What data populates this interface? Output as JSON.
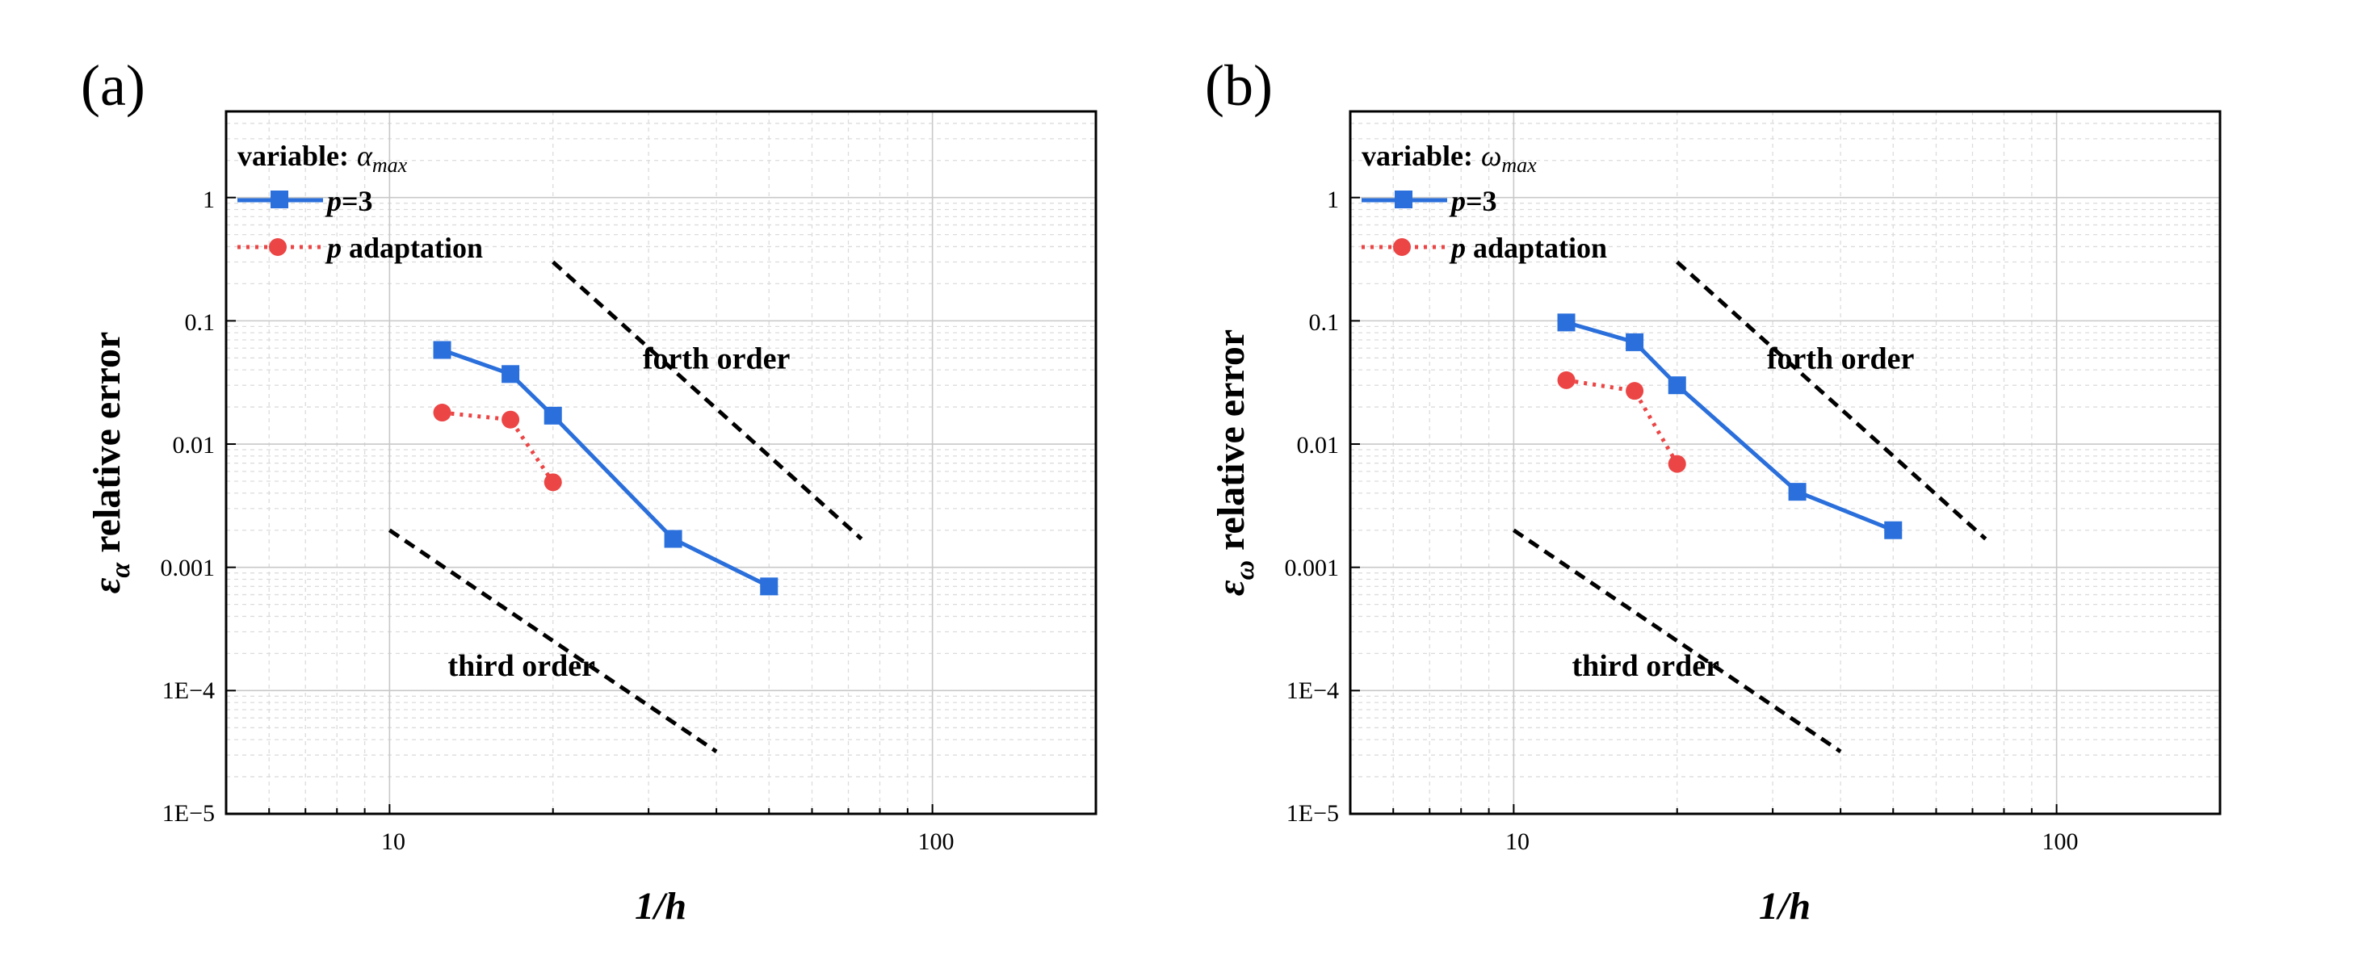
{
  "chart_data": [
    {
      "panel_label": "(a)",
      "type": "line",
      "xscale": "log",
      "yscale": "log",
      "xlim": [
        5,
        200
      ],
      "ylim": [
        1e-05,
        5
      ],
      "xlabel": "1/h",
      "ylabel_symbol": "ε",
      "ylabel_sub": "α",
      "ylabel_text": "relative error",
      "legend_title_prefix": "variable:",
      "legend_title_var": "α",
      "legend_title_sub": "max",
      "x_ticks": [
        {
          "value": 10,
          "label": "10"
        },
        {
          "value": 100,
          "label": "100"
        }
      ],
      "y_ticks": [
        {
          "value": 1,
          "label": "1"
        },
        {
          "value": 0.1,
          "label": "0.1"
        },
        {
          "value": 0.01,
          "label": "0.01"
        },
        {
          "value": 0.001,
          "label": "0.001"
        },
        {
          "value": 0.0001,
          "label": "1E−4"
        },
        {
          "value": 1e-05,
          "label": "1E−5"
        }
      ],
      "series": [
        {
          "name_italic": "p",
          "name_rest": "=3",
          "color": "#2a6fdb",
          "marker": "square",
          "style": "solid",
          "x": [
            12.5,
            16.7,
            20,
            33.3,
            50
          ],
          "y": [
            0.058,
            0.037,
            0.017,
            0.0017,
            0.0007
          ]
        },
        {
          "name_italic": "p",
          "name_rest": " adaptation",
          "color": "#ec4545",
          "marker": "circle",
          "style": "dotted",
          "x": [
            12.5,
            16.7,
            20
          ],
          "y": [
            0.018,
            0.0158,
            0.0049
          ]
        }
      ],
      "reference_lines": [
        {
          "label": "forth order",
          "x": [
            20,
            74
          ],
          "y": [
            0.3,
            0.0017
          ],
          "label_at": [
            40,
            0.05
          ]
        },
        {
          "label": "third order",
          "x": [
            10,
            40
          ],
          "y": [
            0.002,
            3.2e-05
          ],
          "label_at": [
            17.5,
            0.00016
          ]
        }
      ]
    },
    {
      "panel_label": "(b)",
      "type": "line",
      "xscale": "log",
      "yscale": "log",
      "xlim": [
        5,
        200
      ],
      "ylim": [
        1e-05,
        5
      ],
      "xlabel": "1/h",
      "ylabel_symbol": "ε",
      "ylabel_sub": "ω",
      "ylabel_text": "relative error",
      "legend_title_prefix": "variable:",
      "legend_title_var": "ω",
      "legend_title_sub": "max",
      "x_ticks": [
        {
          "value": 10,
          "label": "10"
        },
        {
          "value": 100,
          "label": "100"
        }
      ],
      "y_ticks": [
        {
          "value": 1,
          "label": "1"
        },
        {
          "value": 0.1,
          "label": "0.1"
        },
        {
          "value": 0.01,
          "label": "0.01"
        },
        {
          "value": 0.001,
          "label": "0.001"
        },
        {
          "value": 0.0001,
          "label": "1E−4"
        },
        {
          "value": 1e-05,
          "label": "1E−5"
        }
      ],
      "series": [
        {
          "name_italic": "p",
          "name_rest": "=3",
          "color": "#2a6fdb",
          "marker": "square",
          "style": "solid",
          "x": [
            12.5,
            16.7,
            20,
            33.3,
            50
          ],
          "y": [
            0.097,
            0.067,
            0.03,
            0.0041,
            0.002
          ]
        },
        {
          "name_italic": "p",
          "name_rest": " adaptation",
          "color": "#ec4545",
          "marker": "circle",
          "style": "dotted",
          "x": [
            12.5,
            16.7,
            20
          ],
          "y": [
            0.033,
            0.027,
            0.0069
          ]
        }
      ],
      "reference_lines": [
        {
          "label": "forth order",
          "x": [
            20,
            74
          ],
          "y": [
            0.3,
            0.0017
          ],
          "label_at": [
            40,
            0.05
          ]
        },
        {
          "label": "third order",
          "x": [
            10,
            40
          ],
          "y": [
            0.002,
            3.2e-05
          ],
          "label_at": [
            17.5,
            0.00016
          ]
        }
      ]
    }
  ]
}
